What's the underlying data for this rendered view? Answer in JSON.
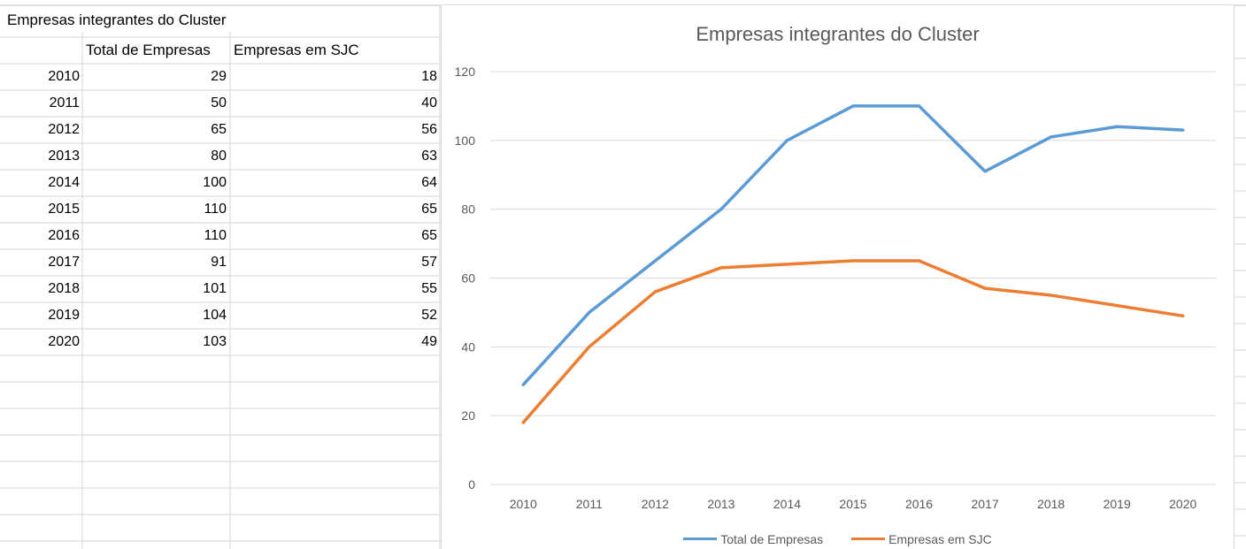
{
  "sheet": {
    "title": "Empresas integrantes do Cluster",
    "headers": [
      "Total de Empresas",
      "Empresas em SJC"
    ],
    "rows": [
      {
        "year": "2010",
        "total": "29",
        "sjc": "18"
      },
      {
        "year": "2011",
        "total": "50",
        "sjc": "40"
      },
      {
        "year": "2012",
        "total": "65",
        "sjc": "56"
      },
      {
        "year": "2013",
        "total": "80",
        "sjc": "63"
      },
      {
        "year": "2014",
        "total": "100",
        "sjc": "64"
      },
      {
        "year": "2015",
        "total": "110",
        "sjc": "65"
      },
      {
        "year": "2016",
        "total": "110",
        "sjc": "65"
      },
      {
        "year": "2017",
        "total": "91",
        "sjc": "57"
      },
      {
        "year": "2018",
        "total": "101",
        "sjc": "55"
      },
      {
        "year": "2019",
        "total": "104",
        "sjc": "52"
      },
      {
        "year": "2020",
        "total": "103",
        "sjc": "49"
      }
    ]
  },
  "chart_data": {
    "type": "line",
    "title": "Empresas integrantes do Cluster",
    "xlabel": "",
    "ylabel": "",
    "categories": [
      "2010",
      "2011",
      "2012",
      "2013",
      "2014",
      "2015",
      "2016",
      "2017",
      "2018",
      "2019",
      "2020"
    ],
    "series": [
      {
        "name": "Total de Empresas",
        "color": "#5b9bd5",
        "values": [
          29,
          50,
          65,
          80,
          100,
          110,
          110,
          91,
          101,
          104,
          103
        ]
      },
      {
        "name": "Empresas em SJC",
        "color": "#ed7d31",
        "values": [
          18,
          40,
          56,
          63,
          64,
          65,
          65,
          57,
          55,
          52,
          49
        ]
      }
    ],
    "ylim": [
      0,
      120
    ],
    "yticks": [
      0,
      20,
      40,
      60,
      80,
      100,
      120
    ],
    "grid": true,
    "legend": "bottom"
  }
}
